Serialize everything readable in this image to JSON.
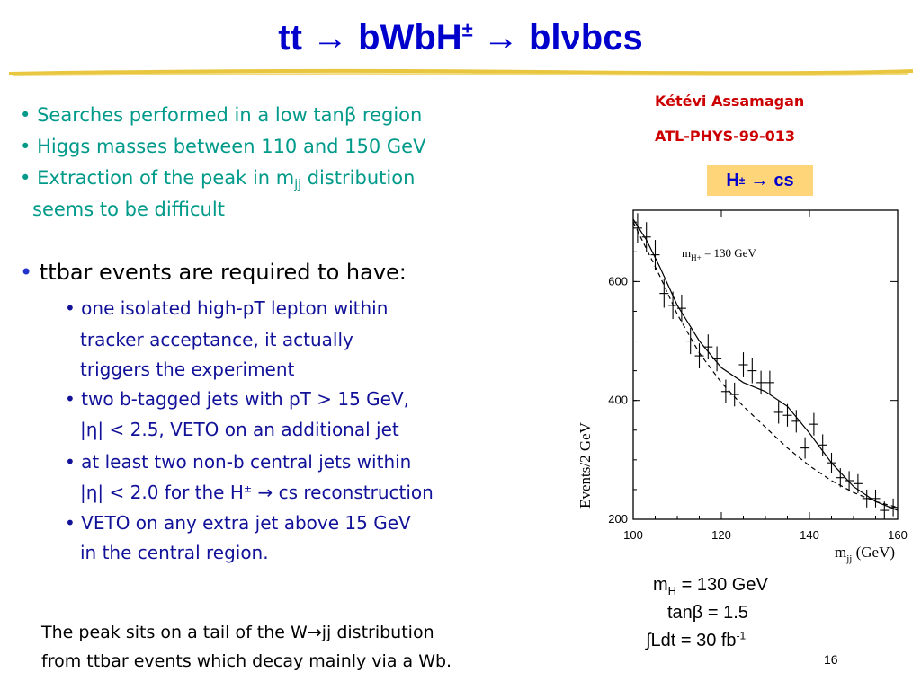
{
  "title": {
    "part1": "tt",
    "arrow1": "→",
    "part2": "bWbH",
    "pm": "±",
    "arrow2": "→",
    "part3": "blνbcs"
  },
  "reference": {
    "author": "Kétévi Assamagan",
    "note_id": "ATL-PHYS-99-013"
  },
  "channel_badge": {
    "h": "H",
    "pm": "±",
    "arrow": "→",
    "cs": "cs"
  },
  "bullets_top": [
    {
      "bullet": "•",
      "text": "Searches performed in a low tanβ region"
    },
    {
      "bullet": "•",
      "text": "Higgs masses between 110 and 150 GeV"
    },
    {
      "bullet": "•",
      "pre": "Extraction of the peak in m",
      "sub": "jj",
      "post": " distribution"
    },
    {
      "text": "seems to be difficult"
    }
  ],
  "requirements": {
    "heading_bullet": "•",
    "heading": "ttbar events are required to have:",
    "items": [
      {
        "lines": [
          "• one isolated high-pT lepton within",
          "tracker acceptance, it actually",
          "triggers the experiment"
        ]
      },
      {
        "lines": [
          "• two b-tagged jets with pT > 15 GeV,",
          "|η| < 2.5, VETO on an additional jet"
        ]
      },
      {
        "lines": [
          "• at least two non-b central jets within"
        ],
        "line_h": {
          "pre": "|η| < 2.0 for the H",
          "pm": "±",
          "arrow": " → ",
          "post": "cs reconstruction"
        }
      },
      {
        "lines": [
          "• VETO on any extra jet above 15 GeV",
          "in the central region."
        ]
      }
    ]
  },
  "caption": {
    "line1_pre": "The peak sits on a tail of the W",
    "line1_arrow": "→",
    "line1_post": "jj distribution",
    "line2": "from ttbar events which decay mainly via a Wb."
  },
  "params": {
    "mh_pre": "m",
    "mh_sub": "H",
    "mh_post": " = 130 GeV",
    "tanb": "tanβ = 1.5",
    "lumi_pre": "∫Ldt = 30 fb",
    "lumi_sup": "-1"
  },
  "page_number": "16",
  "chart_data": {
    "type": "scatter",
    "title": "",
    "annotation": {
      "pre": "m",
      "sub": "H+",
      "post": " = 130 GeV"
    },
    "xlabel": {
      "pre": "m",
      "sub": "jj",
      "post": " (GeV)"
    },
    "ylabel": "Events/2 GeV",
    "xlim": [
      100,
      160
    ],
    "ylim": [
      200,
      720
    ],
    "xticks": [
      100,
      120,
      140,
      160
    ],
    "yticks": [
      200,
      400,
      600
    ],
    "grid": false,
    "series": [
      {
        "style": "points-with-errorbars",
        "x": [
          101,
          103,
          105,
          107,
          109,
          111,
          113,
          115,
          117,
          119,
          121,
          123,
          125,
          127,
          129,
          131,
          133,
          135,
          137,
          139,
          141,
          143,
          145,
          147,
          149,
          151,
          153,
          155,
          157,
          159
        ],
        "y": [
          690,
          675,
          645,
          580,
          560,
          555,
          500,
          475,
          490,
          470,
          415,
          410,
          460,
          450,
          430,
          430,
          380,
          375,
          365,
          320,
          360,
          325,
          295,
          270,
          265,
          260,
          235,
          235,
          215,
          220
        ],
        "yerr": [
          25,
          25,
          25,
          24,
          23,
          23,
          22,
          21,
          21,
          21,
          20,
          20,
          21,
          21,
          20,
          20,
          19,
          19,
          19,
          18,
          19,
          18,
          17,
          16,
          16,
          16,
          15,
          15,
          15,
          15
        ]
      },
      {
        "style": "solid-curve",
        "x": [
          100,
          103,
          106,
          110,
          115,
          120,
          125,
          130,
          135,
          140,
          145,
          150,
          155,
          160
        ],
        "y": [
          705,
          670,
          625,
          560,
          500,
          455,
          430,
          415,
          390,
          345,
          295,
          255,
          230,
          215
        ]
      },
      {
        "style": "dashed-curve",
        "x": [
          100,
          103,
          106,
          110,
          115,
          120,
          125,
          130,
          135,
          140,
          145,
          150,
          155,
          160
        ],
        "y": [
          700,
          655,
          610,
          545,
          480,
          430,
          390,
          355,
          320,
          290,
          265,
          245,
          230,
          220
        ]
      }
    ]
  }
}
